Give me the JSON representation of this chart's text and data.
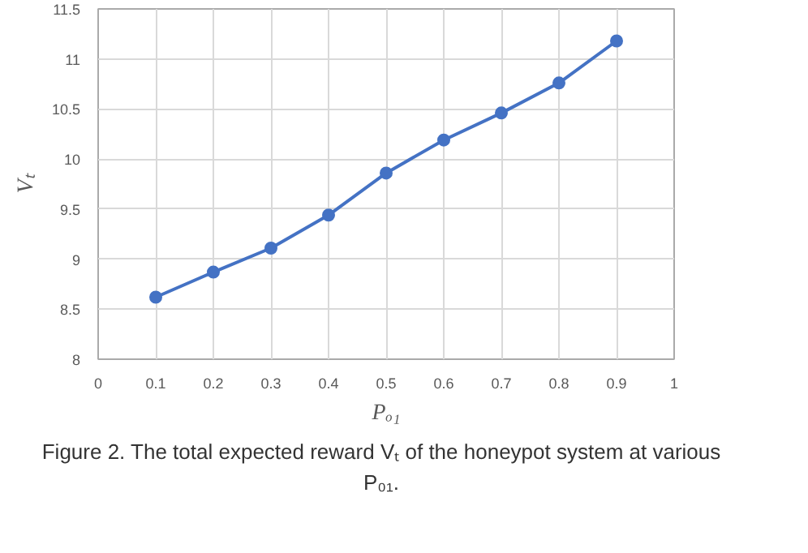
{
  "chart_data": {
    "type": "line",
    "xlabel": "Pₒ₁",
    "ylabel": "Vₜ",
    "x": [
      0.1,
      0.2,
      0.3,
      0.4,
      0.5,
      0.6,
      0.7,
      0.8,
      0.9
    ],
    "series": [
      {
        "color": "#4472c4",
        "values": [
          8.62,
          8.87,
          9.11,
          9.44,
          9.86,
          10.19,
          10.46,
          10.76,
          11.18
        ]
      }
    ],
    "xlim": [
      0,
      1
    ],
    "xticks": [
      0,
      0.1,
      0.2,
      0.3,
      0.4,
      0.5,
      0.6,
      0.7,
      0.8,
      0.9,
      1
    ],
    "ylim": [
      8,
      11.5
    ],
    "yticks": [
      8,
      8.5,
      9,
      9.5,
      10,
      10.5,
      11,
      11.5
    ],
    "grid": true,
    "marker": "circle",
    "line_style": "solid",
    "annotations": [
      "Figure 2. The total expected reward Vₜ of the honeypot system at various P₀₁."
    ]
  }
}
